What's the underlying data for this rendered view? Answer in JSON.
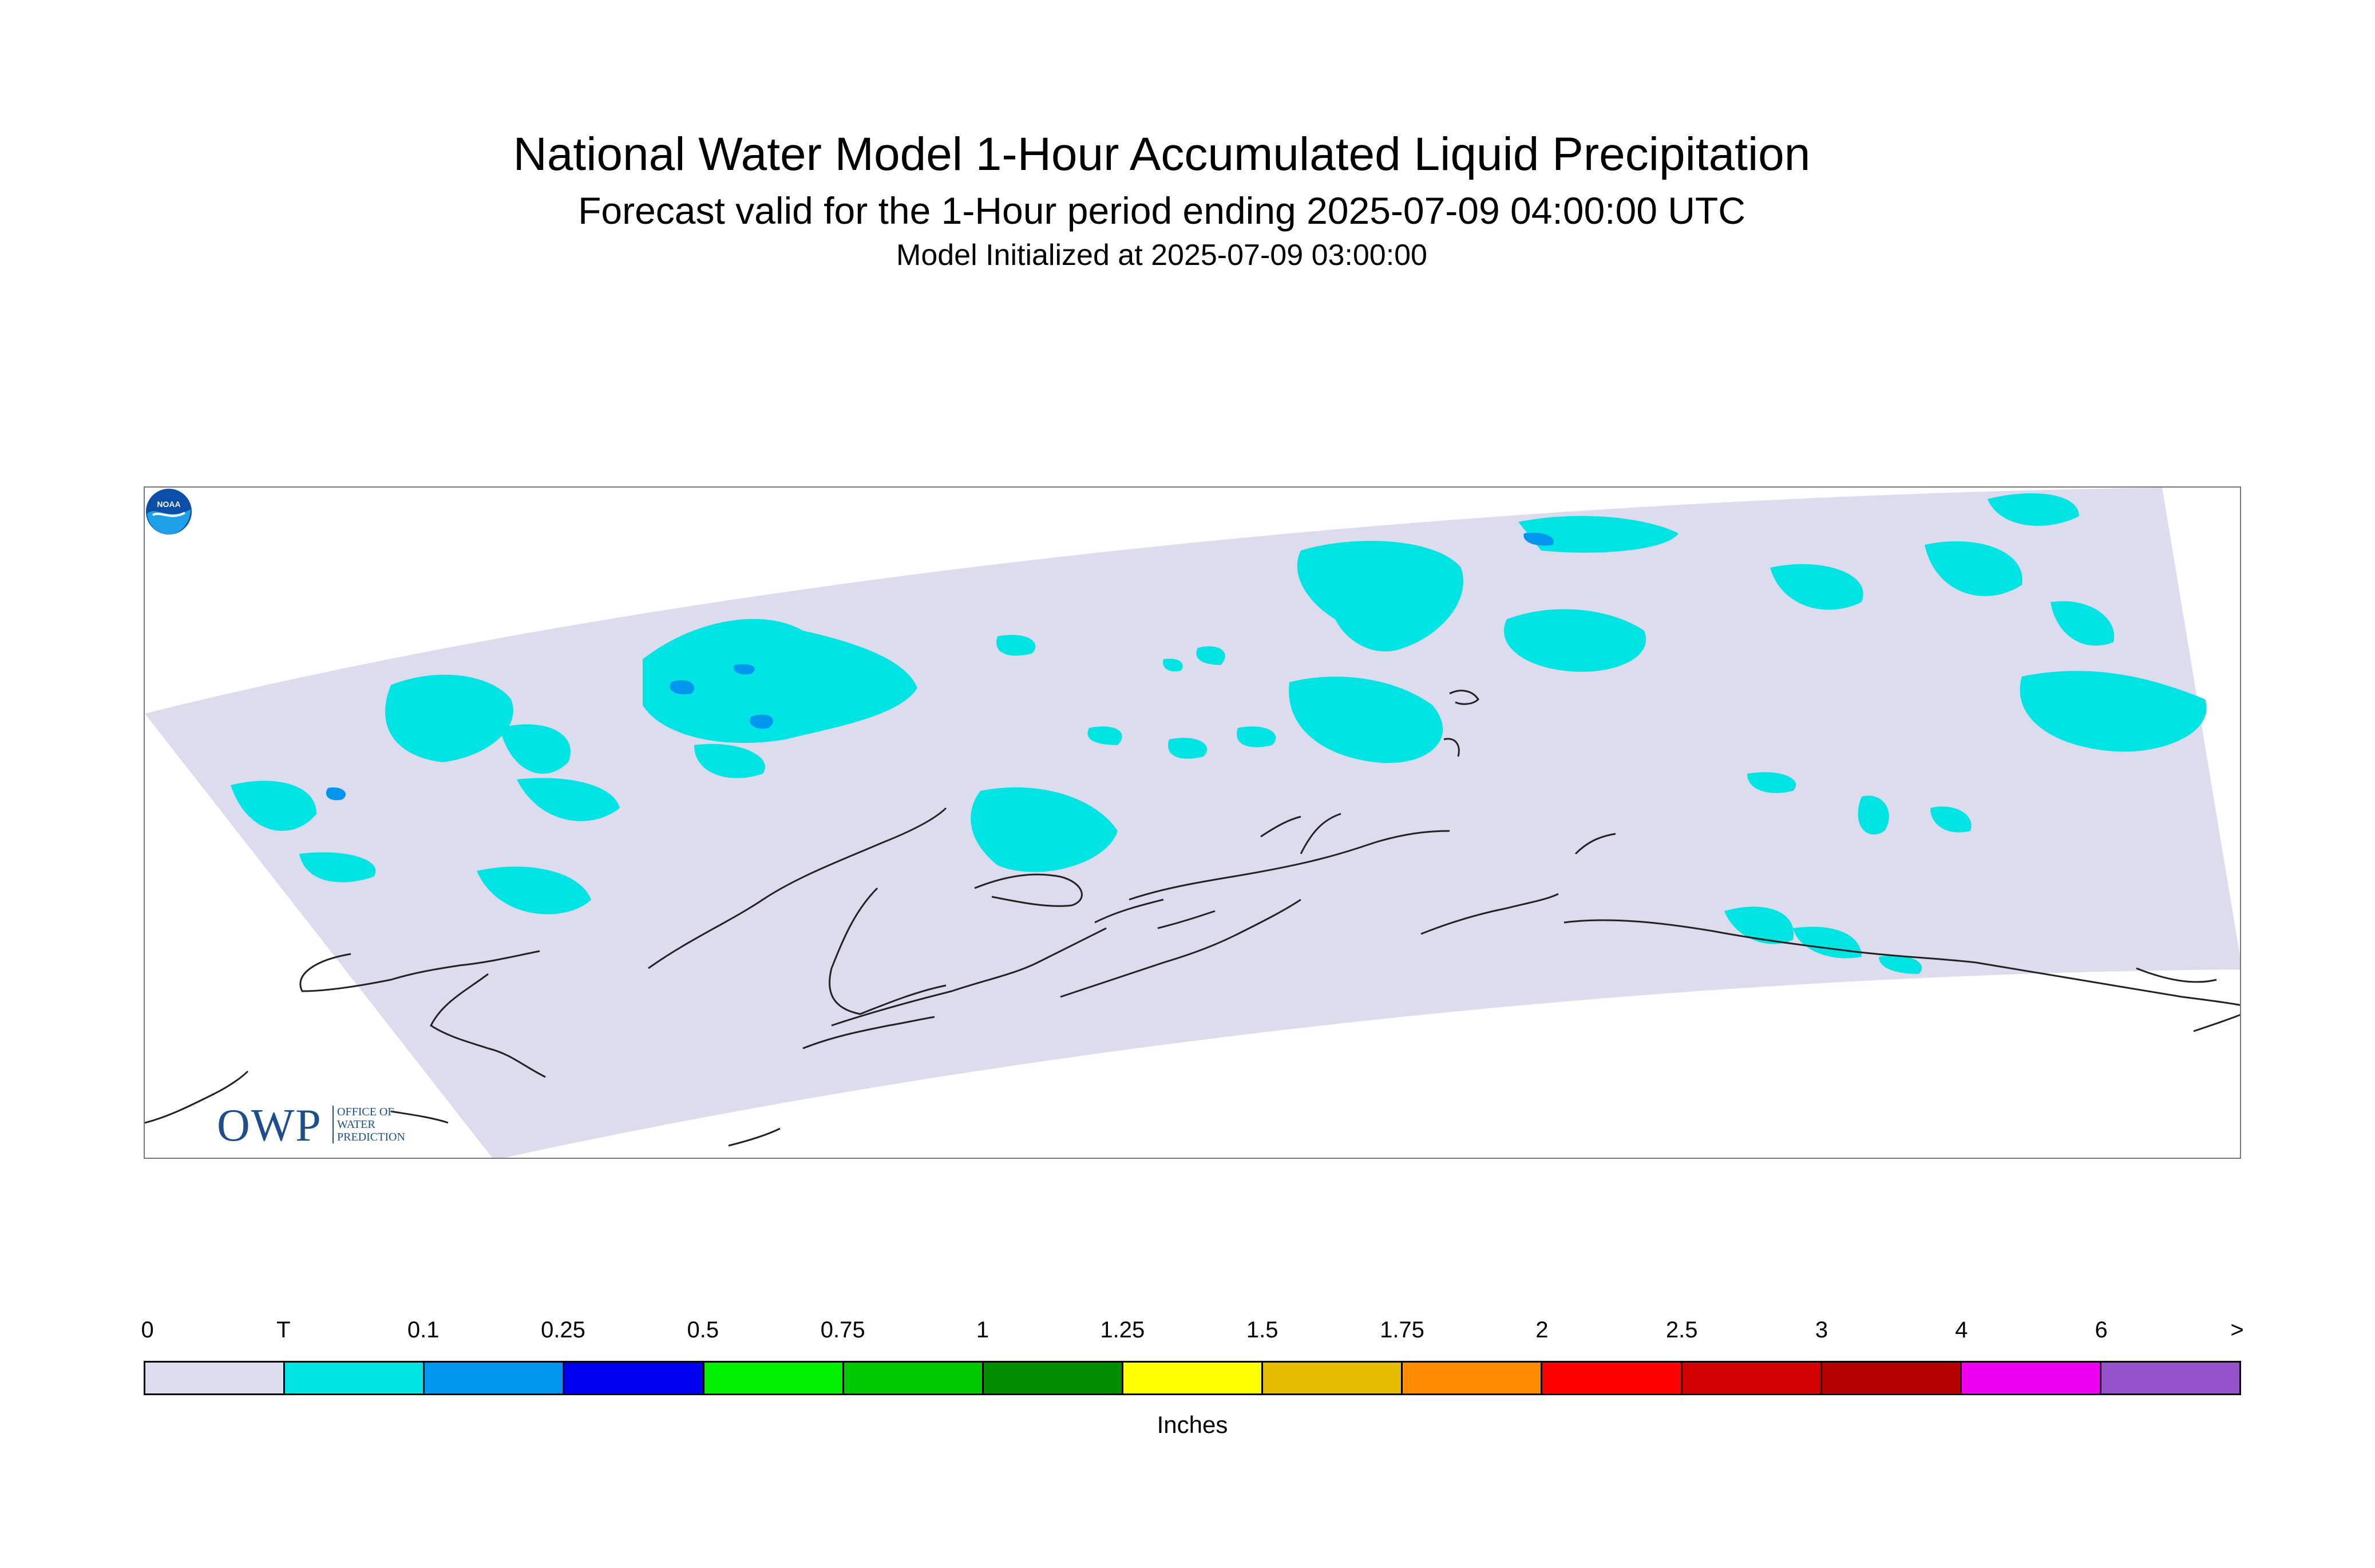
{
  "header": {
    "title": "National Water Model 1-Hour Accumulated Liquid Precipitation",
    "subtitle": "Forecast valid for the 1-Hour period ending 2025-07-09 04:00:00 UTC",
    "initialized": "Model Initialized at 2025-07-09 03:00:00"
  },
  "map": {
    "domain_fill_color": "#dcdcee",
    "coastline_color": "#222222",
    "precip_colors": {
      "trace": "#00e4e4",
      "light": "#0096f0"
    }
  },
  "logos": {
    "owp_letters": "OWP",
    "owp_text": [
      "OFFICE OF",
      "WATER",
      "PREDICTION"
    ],
    "noaa_text": "NOAA"
  },
  "legend": {
    "units": "Inches",
    "tick_labels": [
      "0",
      "T",
      "0.1",
      "0.25",
      "0.5",
      "0.75",
      "1",
      "1.25",
      "1.5",
      "1.75",
      "2",
      "2.5",
      "3",
      "4",
      "6",
      ">"
    ],
    "colors": [
      "#dcdcee",
      "#00e4e4",
      "#0096f0",
      "#0000f0",
      "#00f000",
      "#00c800",
      "#008c00",
      "#ffff00",
      "#e6bc00",
      "#ff8c00",
      "#ff0000",
      "#d20000",
      "#b40000",
      "#f000f0",
      "#9650c8"
    ]
  }
}
